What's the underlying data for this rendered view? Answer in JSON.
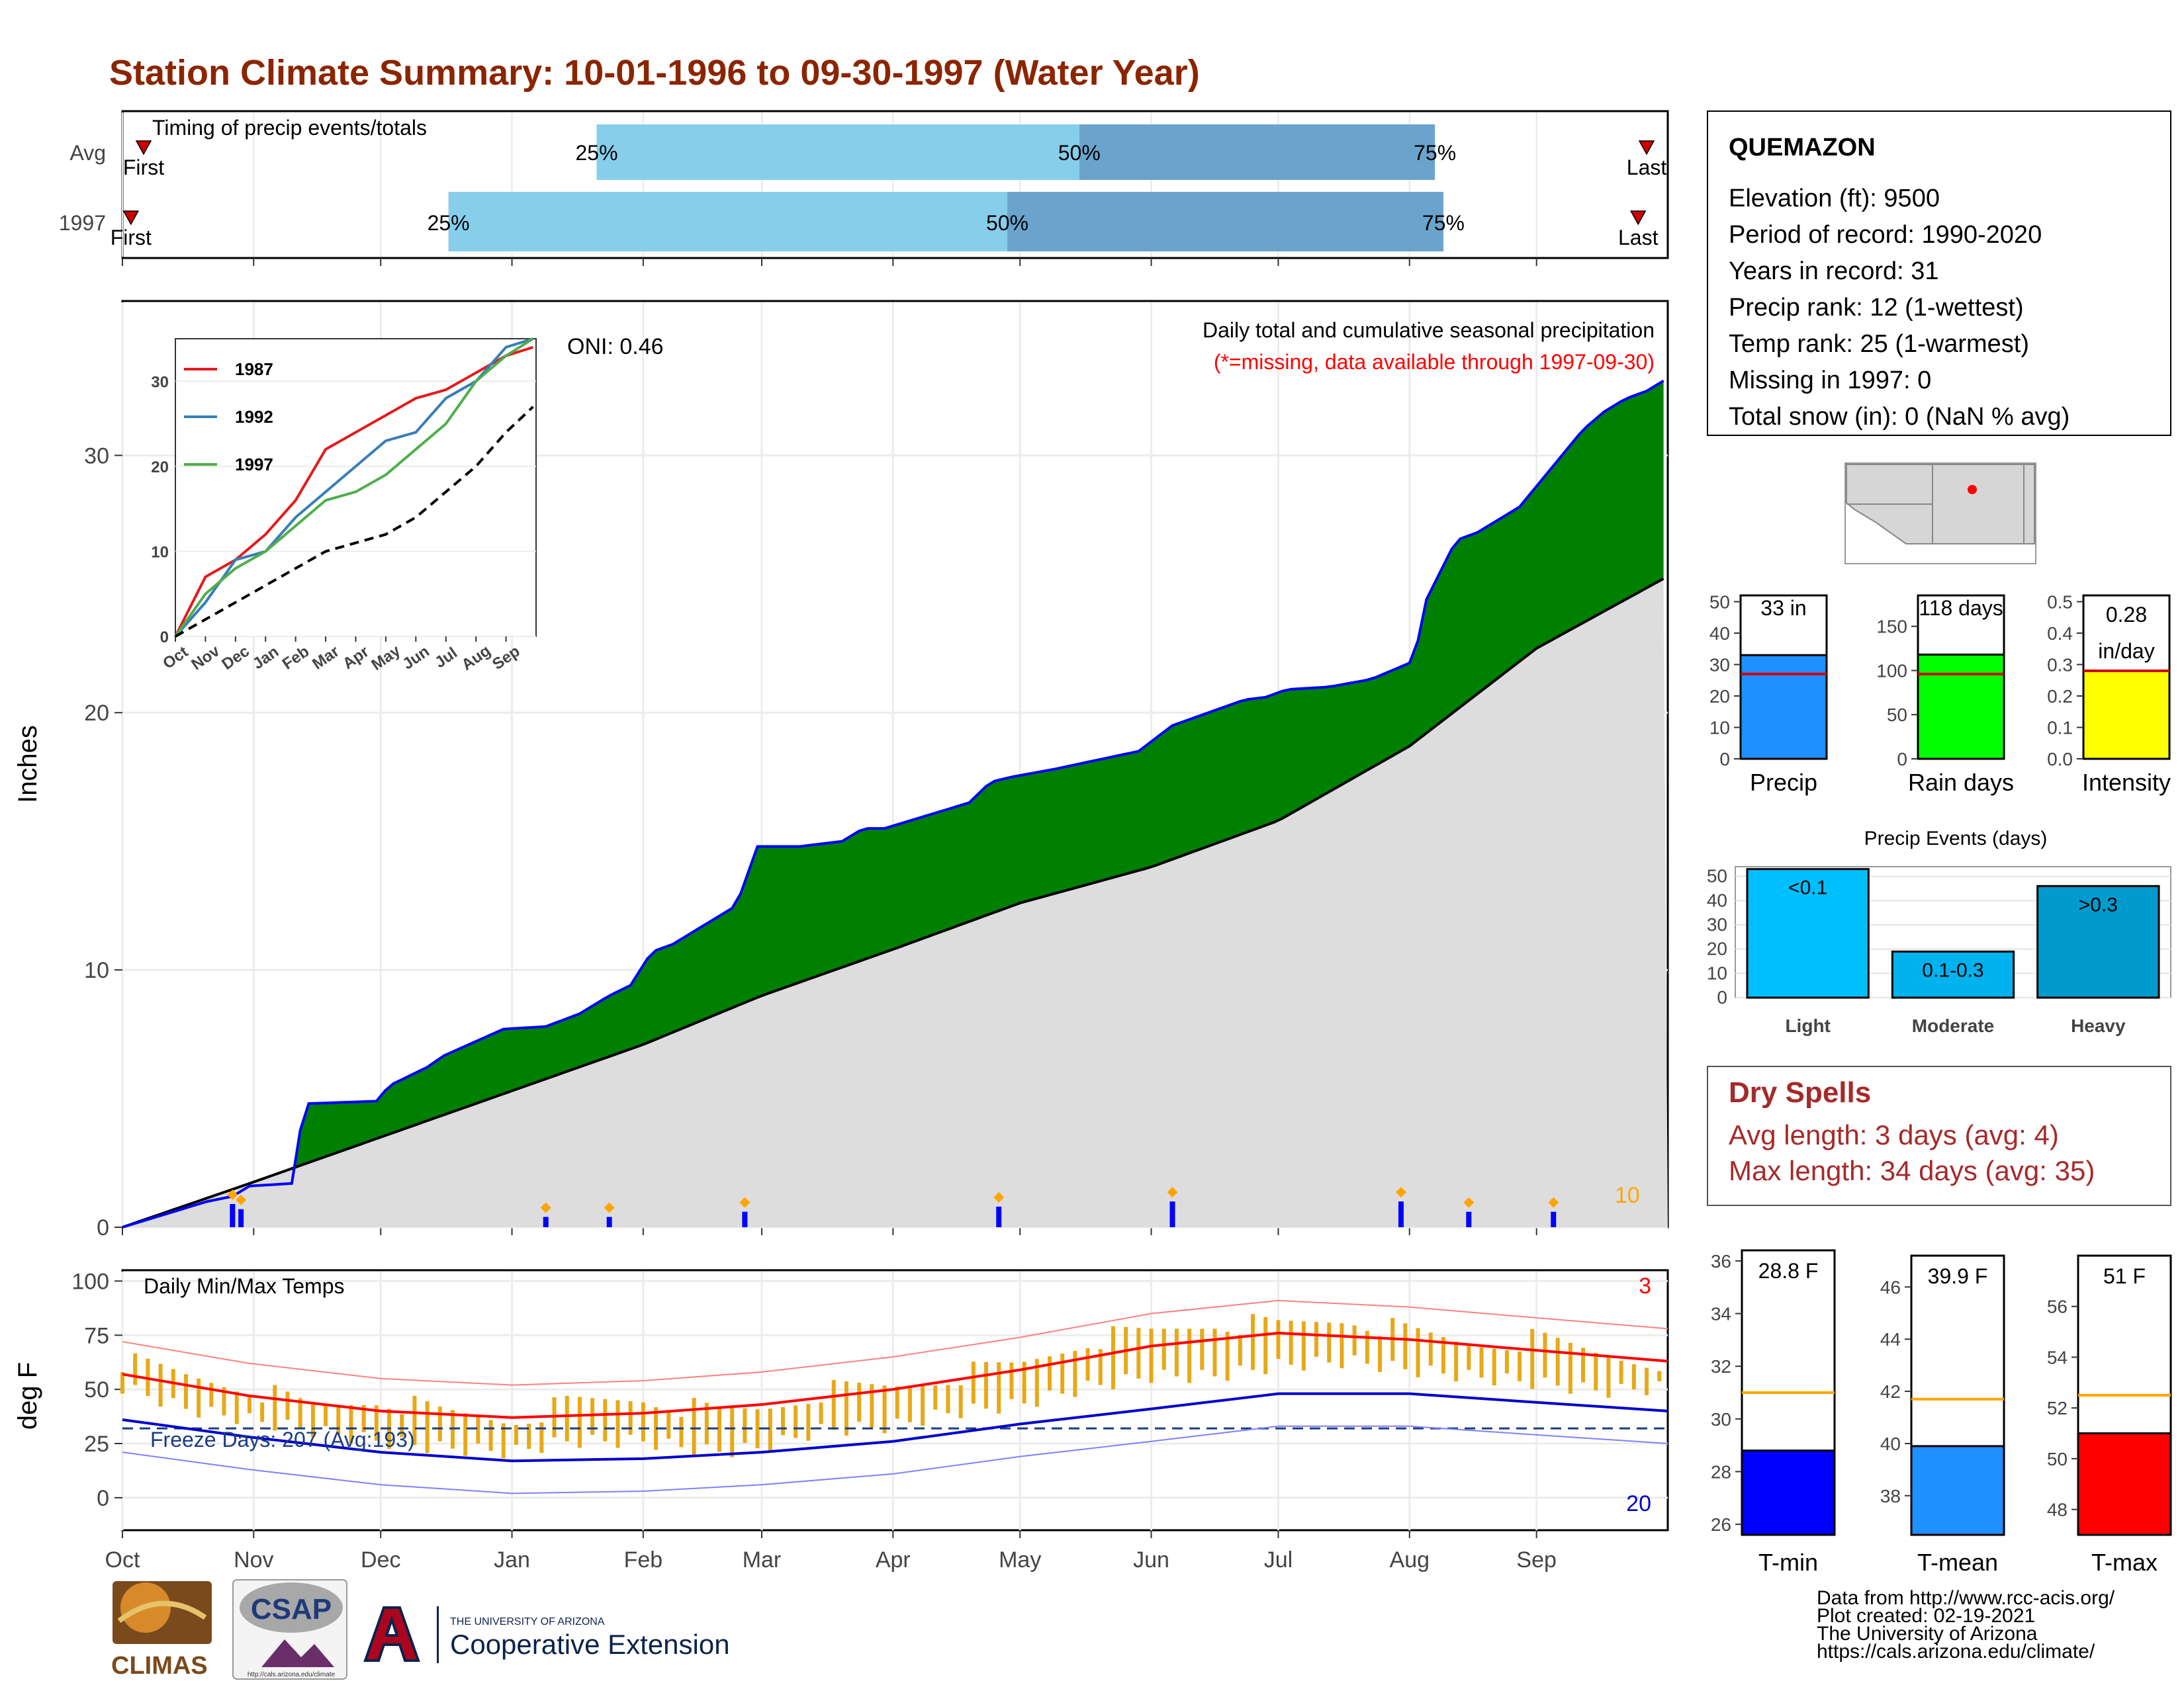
{
  "page": {
    "title": "Station Climate Summary: 10-01-1996 to 09-30-1997 (Water Year)",
    "colors": {
      "title": "#8B2500",
      "cum_fill": "#008000",
      "cum_line": "#0000FF",
      "avg_fill": "#DDDDDD",
      "q_light": "#87CEEB",
      "q_dark": "#6AA4CC",
      "dry_text": "#A52A2A",
      "bar_gold": "#E8A817",
      "tmax_line": "#FF0000",
      "tmin_line": "#0000CC",
      "missing_text": "#FF0000"
    }
  },
  "chart_data": [
    {
      "type": "bar",
      "panel": "timing",
      "title": "Timing of precip events/totals",
      "rows": [
        "Avg",
        "1997"
      ],
      "x_month_ticks": [
        "Oct",
        "Nov",
        "Dec",
        "Jan",
        "Feb",
        "Mar",
        "Apr",
        "May",
        "Jun",
        "Jul",
        "Aug",
        "Sep"
      ],
      "series": [
        {
          "name": "Avg",
          "first_day": 5,
          "p25_day": 112,
          "p50_day": 226,
          "p75_day": 310,
          "last_day": 360,
          "labels": {
            "first": "First",
            "last": "Last",
            "p25": "25%",
            "p50": "50%",
            "p75": "75%"
          }
        },
        {
          "name": "1997",
          "first_day": 2,
          "p25_day": 77,
          "p50_day": 209,
          "p75_day": 312,
          "last_day": 358,
          "labels": {
            "first": "First",
            "last": "Last",
            "p25": "25%",
            "p50": "50%",
            "p75": "75%"
          }
        }
      ]
    },
    {
      "type": "area",
      "panel": "precip",
      "ylabel": "Inches",
      "ylim": [
        0,
        36
      ],
      "y_ticks": [
        0,
        10,
        20,
        30
      ],
      "header": "Daily total and cumulative seasonal precipitation",
      "missing_note": "(*=missing, data available through 1997-09-30)",
      "oni": "ONI: 0.46",
      "max_label": "10",
      "cumulative_1997": {
        "x_day": [
          0,
          20,
          26,
          30,
          40,
          43,
          60,
          63,
          73,
          75,
          90,
          100,
          108,
          112,
          115,
          120,
          125,
          130,
          133,
          145,
          150,
          160,
          170,
          175,
          180,
          200,
          205,
          210,
          220,
          240,
          248,
          265,
          270,
          275,
          285,
          295,
          305,
          308,
          315,
          320,
          330,
          340,
          345,
          350,
          355,
          360,
          365
        ],
        "y_in": [
          0,
          1,
          1.2,
          1.6,
          1.7,
          4.8,
          4.9,
          5.5,
          6.3,
          6.6,
          7.7,
          7.8,
          8.3,
          8.7,
          9.0,
          9.4,
          10.7,
          11.0,
          11.3,
          12.5,
          14.8,
          14.8,
          15.0,
          15.5,
          15.5,
          16.5,
          17.3,
          17.5,
          17.8,
          18.5,
          19.5,
          20.5,
          20.6,
          20.9,
          21.0,
          21.3,
          22.0,
          24.4,
          26.7,
          27.0,
          28.0,
          30.0,
          31.0,
          31.7,
          32.2,
          32.5,
          33.0
        ]
      },
      "average_cumulative": {
        "x_day": [
          0,
          30,
          61,
          92,
          123,
          151,
          182,
          212,
          243,
          273,
          304,
          334,
          365
        ],
        "y_in": [
          0,
          1.7,
          3.5,
          5.3,
          7.1,
          9.0,
          10.8,
          12.6,
          14.0,
          15.8,
          18.7,
          22.5,
          25.3
        ]
      },
      "daily_precip_markers": [
        {
          "day": 26,
          "value": 0.9
        },
        {
          "day": 28,
          "value": 0.7
        },
        {
          "day": 100,
          "value": 0.4
        },
        {
          "day": 115,
          "value": 0.4
        },
        {
          "day": 147,
          "value": 0.6
        },
        {
          "day": 207,
          "value": 0.8
        },
        {
          "day": 248,
          "value": 1.0
        },
        {
          "day": 302,
          "value": 1.0
        },
        {
          "day": 318,
          "value": 0.6
        },
        {
          "day": 338,
          "value": 0.6
        }
      ]
    },
    {
      "type": "line",
      "panel": "inset",
      "x_ticks": [
        "Oct",
        "Nov",
        "Dec",
        "Jan",
        "Feb",
        "Mar",
        "Apr",
        "May",
        "Jun",
        "Jul",
        "Aug",
        "Sep"
      ],
      "y_ticks": [
        0,
        10,
        20,
        30
      ],
      "ylim": [
        0,
        35
      ],
      "series": [
        {
          "name": "1987",
          "color": "#E41A1C",
          "x": [
            0,
            1,
            2,
            3,
            4,
            5,
            6,
            7,
            8,
            9,
            10,
            11,
            11.9
          ],
          "y": [
            0,
            7,
            9,
            12,
            16,
            22,
            24,
            26,
            28,
            29,
            31,
            33,
            34
          ]
        },
        {
          "name": "1992",
          "color": "#377EB8",
          "x": [
            0,
            1,
            2,
            3,
            4,
            5,
            6,
            7,
            8,
            9,
            10,
            11,
            11.9
          ],
          "y": [
            0,
            4,
            9,
            10,
            14,
            17,
            20,
            23,
            24,
            28,
            30,
            34,
            35
          ]
        },
        {
          "name": "1997",
          "color": "#4DAF4A",
          "x": [
            0,
            1,
            2,
            3,
            4,
            5,
            6,
            7,
            8,
            9,
            10,
            11,
            11.9
          ],
          "y": [
            0,
            5,
            8,
            10,
            13,
            16,
            17,
            19,
            22,
            25,
            30,
            33,
            35
          ]
        },
        {
          "name": "",
          "dashed": true,
          "color": "#000000",
          "x": [
            0,
            1,
            2,
            3,
            4,
            5,
            6,
            7,
            8,
            9,
            10,
            11,
            11.9
          ],
          "y": [
            0,
            2,
            4,
            6,
            8,
            10,
            11,
            12,
            14,
            17,
            20,
            24,
            27
          ]
        }
      ]
    },
    {
      "type": "line",
      "panel": "temps",
      "title": "Daily Min/Max Temps",
      "ylabel": "deg F",
      "ylim": [
        -15,
        105
      ],
      "y_ticks": [
        0,
        25,
        50,
        75,
        100
      ],
      "x_ticks": [
        "Oct",
        "Nov",
        "Dec",
        "Jan",
        "Feb",
        "Mar",
        "Apr",
        "May",
        "Jun",
        "Jul",
        "Aug",
        "Sep"
      ],
      "freeze_label": "Freeze Days: 207 (Avg:193)",
      "freeze_line": 32,
      "max_label": "3",
      "min_label": "20",
      "tmax_avg": {
        "x_day": [
          0,
          30,
          61,
          92,
          123,
          151,
          182,
          212,
          243,
          273,
          304,
          334,
          365
        ],
        "y_f": [
          57,
          47,
          40,
          37,
          39,
          43,
          50,
          59,
          70,
          76,
          73,
          68,
          63
        ]
      },
      "tmin_avg": {
        "x_day": [
          0,
          30,
          61,
          92,
          123,
          151,
          182,
          212,
          243,
          273,
          304,
          334,
          365
        ],
        "y_f": [
          36,
          28,
          21,
          17,
          18,
          21,
          26,
          34,
          41,
          48,
          48,
          44,
          40
        ]
      },
      "tmax_1997": {
        "x_day": [
          0,
          15,
          30,
          45,
          61,
          75,
          92,
          105,
          123,
          140,
          151,
          165,
          182,
          195,
          212,
          228,
          243,
          258,
          273,
          290,
          304,
          318,
          334,
          350,
          365
        ],
        "y_f": [
          62,
          55,
          50,
          40,
          45,
          38,
          35,
          42,
          45,
          38,
          40,
          48,
          50,
          55,
          60,
          72,
          75,
          80,
          78,
          82,
          75,
          70,
          72,
          65,
          62
        ]
      },
      "tmin_1997": {
        "x_day": [
          0,
          15,
          30,
          45,
          61,
          75,
          92,
          105,
          123,
          140,
          151,
          165,
          182,
          195,
          212,
          228,
          243,
          258,
          273,
          290,
          304,
          318,
          334,
          350,
          365
        ],
        "y_f": [
          40,
          30,
          25,
          20,
          15,
          12,
          10,
          15,
          15,
          10,
          12,
          20,
          22,
          28,
          32,
          40,
          45,
          45,
          50,
          52,
          48,
          45,
          42,
          38,
          40
        ]
      }
    },
    {
      "type": "bar",
      "panel": "precip_stats",
      "panels": [
        {
          "name": "Precip",
          "label": "33 in",
          "value": 33,
          "avg": 27,
          "ylim": [
            0,
            52
          ],
          "y_ticks": [
            0,
            10,
            20,
            30,
            40,
            50
          ],
          "color": "#1E90FF"
        },
        {
          "name": "Rain days",
          "label": "118 days",
          "value": 118,
          "avg": 96,
          "ylim": [
            0,
            185
          ],
          "y_ticks": [
            0,
            50,
            100,
            150
          ],
          "color": "#00FF00"
        },
        {
          "name": "Intensity",
          "label_line1": "0.28",
          "label_line2": "in/day",
          "value": 0.28,
          "avg": 0.28,
          "ylim": [
            0,
            0.52
          ],
          "y_ticks": [
            "0.0",
            "0.1",
            "0.2",
            "0.3",
            "0.4",
            "0.5"
          ],
          "color": "#FFFF00"
        }
      ]
    },
    {
      "type": "bar",
      "panel": "precip_events",
      "title": "Precip Events (days)",
      "categories": [
        "Light",
        "Moderate",
        "Heavy"
      ],
      "bar_labels": [
        "<0.1",
        "0.1-0.3",
        ">0.3"
      ],
      "values": [
        53,
        19,
        46
      ],
      "colors": [
        "#00BFFF",
        "#00B2EE",
        "#009ACD"
      ],
      "ylim": [
        0,
        54
      ],
      "y_ticks": [
        0,
        10,
        20,
        30,
        40,
        50
      ]
    },
    {
      "type": "bar",
      "panel": "temp_stats",
      "panels": [
        {
          "name": "T-min",
          "label": "28.8 F",
          "value": 28.8,
          "avg": 31,
          "ylim": [
            25.6,
            36.4
          ],
          "y_ticks": [
            26,
            28,
            30,
            32,
            34,
            36
          ],
          "color": "#0000FF"
        },
        {
          "name": "T-mean",
          "label": "39.9 F",
          "value": 39.9,
          "avg": 41.7,
          "ylim": [
            36.5,
            47.2
          ],
          "y_ticks": [
            38,
            40,
            42,
            44,
            46
          ],
          "color": "#1E90FF"
        },
        {
          "name": "T-max",
          "label": "51 F",
          "value": 51,
          "avg": 52.5,
          "ylim": [
            47,
            58
          ],
          "y_ticks": [
            48,
            50,
            52,
            54,
            56
          ],
          "color": "#FF0000"
        }
      ]
    }
  ],
  "station": {
    "name": "QUEMAZON",
    "lines": [
      "Elevation (ft): 9500",
      "Period of record: 1990-2020",
      "Years in record: 31",
      "Precip rank: 12 (1-wettest)",
      "Temp rank: 25 (1-warmest)",
      "Missing in 1997: 0",
      "Total snow (in): 0 (NaN % avg)"
    ]
  },
  "dry_spells": {
    "title": "Dry Spells",
    "avg_length": "Avg length: 3 days (avg: 4)",
    "max_length": "Max length: 34 days (avg: 35)"
  },
  "footer": {
    "lines": [
      "Data from http://www.rcc-acis.org/",
      "Plot created: 02-19-2021",
      "The University of Arizona",
      "https://cals.arizona.edu/climate/"
    ],
    "logos": {
      "climas": "CLIMAS",
      "csap": "CSAP",
      "csap_url": "http://cals.arizona.edu/climate",
      "ua_small": "THE UNIVERSITY OF ARIZONA",
      "ua_big": "Cooperative Extension"
    }
  }
}
